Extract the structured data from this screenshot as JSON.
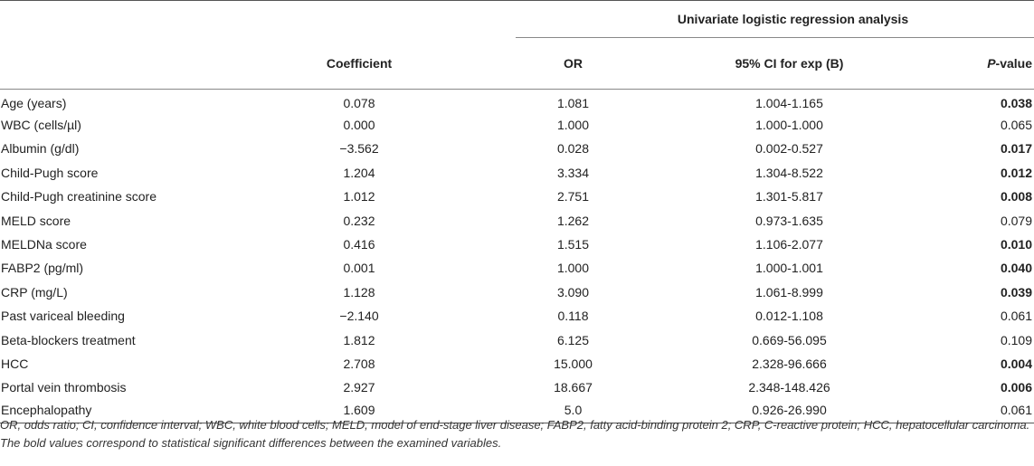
{
  "table": {
    "group_header": "Univariate logistic regression analysis",
    "headers": {
      "variable": "",
      "coefficient": "Coefficient",
      "or": "OR",
      "ci": "95% CI for exp (B)",
      "p_italic": "P",
      "p_rest": "-value"
    },
    "rows": [
      {
        "variable": "Age (years)",
        "coefficient": "0.078",
        "or": "1.081",
        "ci": "1.004-1.165",
        "p": "0.038",
        "bold": true
      },
      {
        "variable": "WBC (cells/µl)",
        "coefficient": "0.000",
        "or": "1.000",
        "ci": "1.000-1.000",
        "p": "0.065",
        "bold": false
      },
      {
        "variable": "Albumin (g/dl)",
        "coefficient": "−3.562",
        "or": "0.028",
        "ci": "0.002-0.527",
        "p": "0.017",
        "bold": true
      },
      {
        "variable": "Child-Pugh score",
        "coefficient": "1.204",
        "or": "3.334",
        "ci": "1.304-8.522",
        "p": "0.012",
        "bold": true
      },
      {
        "variable": "Child-Pugh creatinine score",
        "coefficient": "1.012",
        "or": "2.751",
        "ci": "1.301-5.817",
        "p": "0.008",
        "bold": true
      },
      {
        "variable": "MELD score",
        "coefficient": "0.232",
        "or": "1.262",
        "ci": "0.973-1.635",
        "p": "0.079",
        "bold": false
      },
      {
        "variable": "MELDNa score",
        "coefficient": "0.416",
        "or": "1.515",
        "ci": "1.106-2.077",
        "p": "0.010",
        "bold": true
      },
      {
        "variable": "FABP2 (pg/ml)",
        "coefficient": "0.001",
        "or": "1.000",
        "ci": "1.000-1.001",
        "p": "0.040",
        "bold": true
      },
      {
        "variable": "CRP (mg/L)",
        "coefficient": "1.128",
        "or": "3.090",
        "ci": "1.061-8.999",
        "p": "0.039",
        "bold": true
      },
      {
        "variable": "Past variceal bleeding",
        "coefficient": "−2.140",
        "or": "0.118",
        "ci": "0.012-1.108",
        "p": "0.061",
        "bold": false
      },
      {
        "variable": "Beta-blockers treatment",
        "coefficient": "1.812",
        "or": "6.125",
        "ci": "0.669-56.095",
        "p": "0.109",
        "bold": false
      },
      {
        "variable": "HCC",
        "coefficient": "2.708",
        "or": "15.000",
        "ci": "2.328-96.666",
        "p": "0.004",
        "bold": true
      },
      {
        "variable": "Portal vein thrombosis",
        "coefficient": "2.927",
        "or": "18.667",
        "ci": "2.348-148.426",
        "p": "0.006",
        "bold": true
      },
      {
        "variable": "Encephalopathy",
        "coefficient": "1.609",
        "or": "5.0",
        "ci": "0.926-26.990",
        "p": "0.061",
        "bold": false
      }
    ]
  },
  "footnote": "OR, odds ratio; CI, confidence interval; WBC, white blood cells; MELD, model of end-stage liver disease; FABP2, fatty acid-binding protein 2; CRP, C-reactive protein; HCC, hepatocellular carcinoma. The bold values correspond to statistical significant differences between the examined variables."
}
